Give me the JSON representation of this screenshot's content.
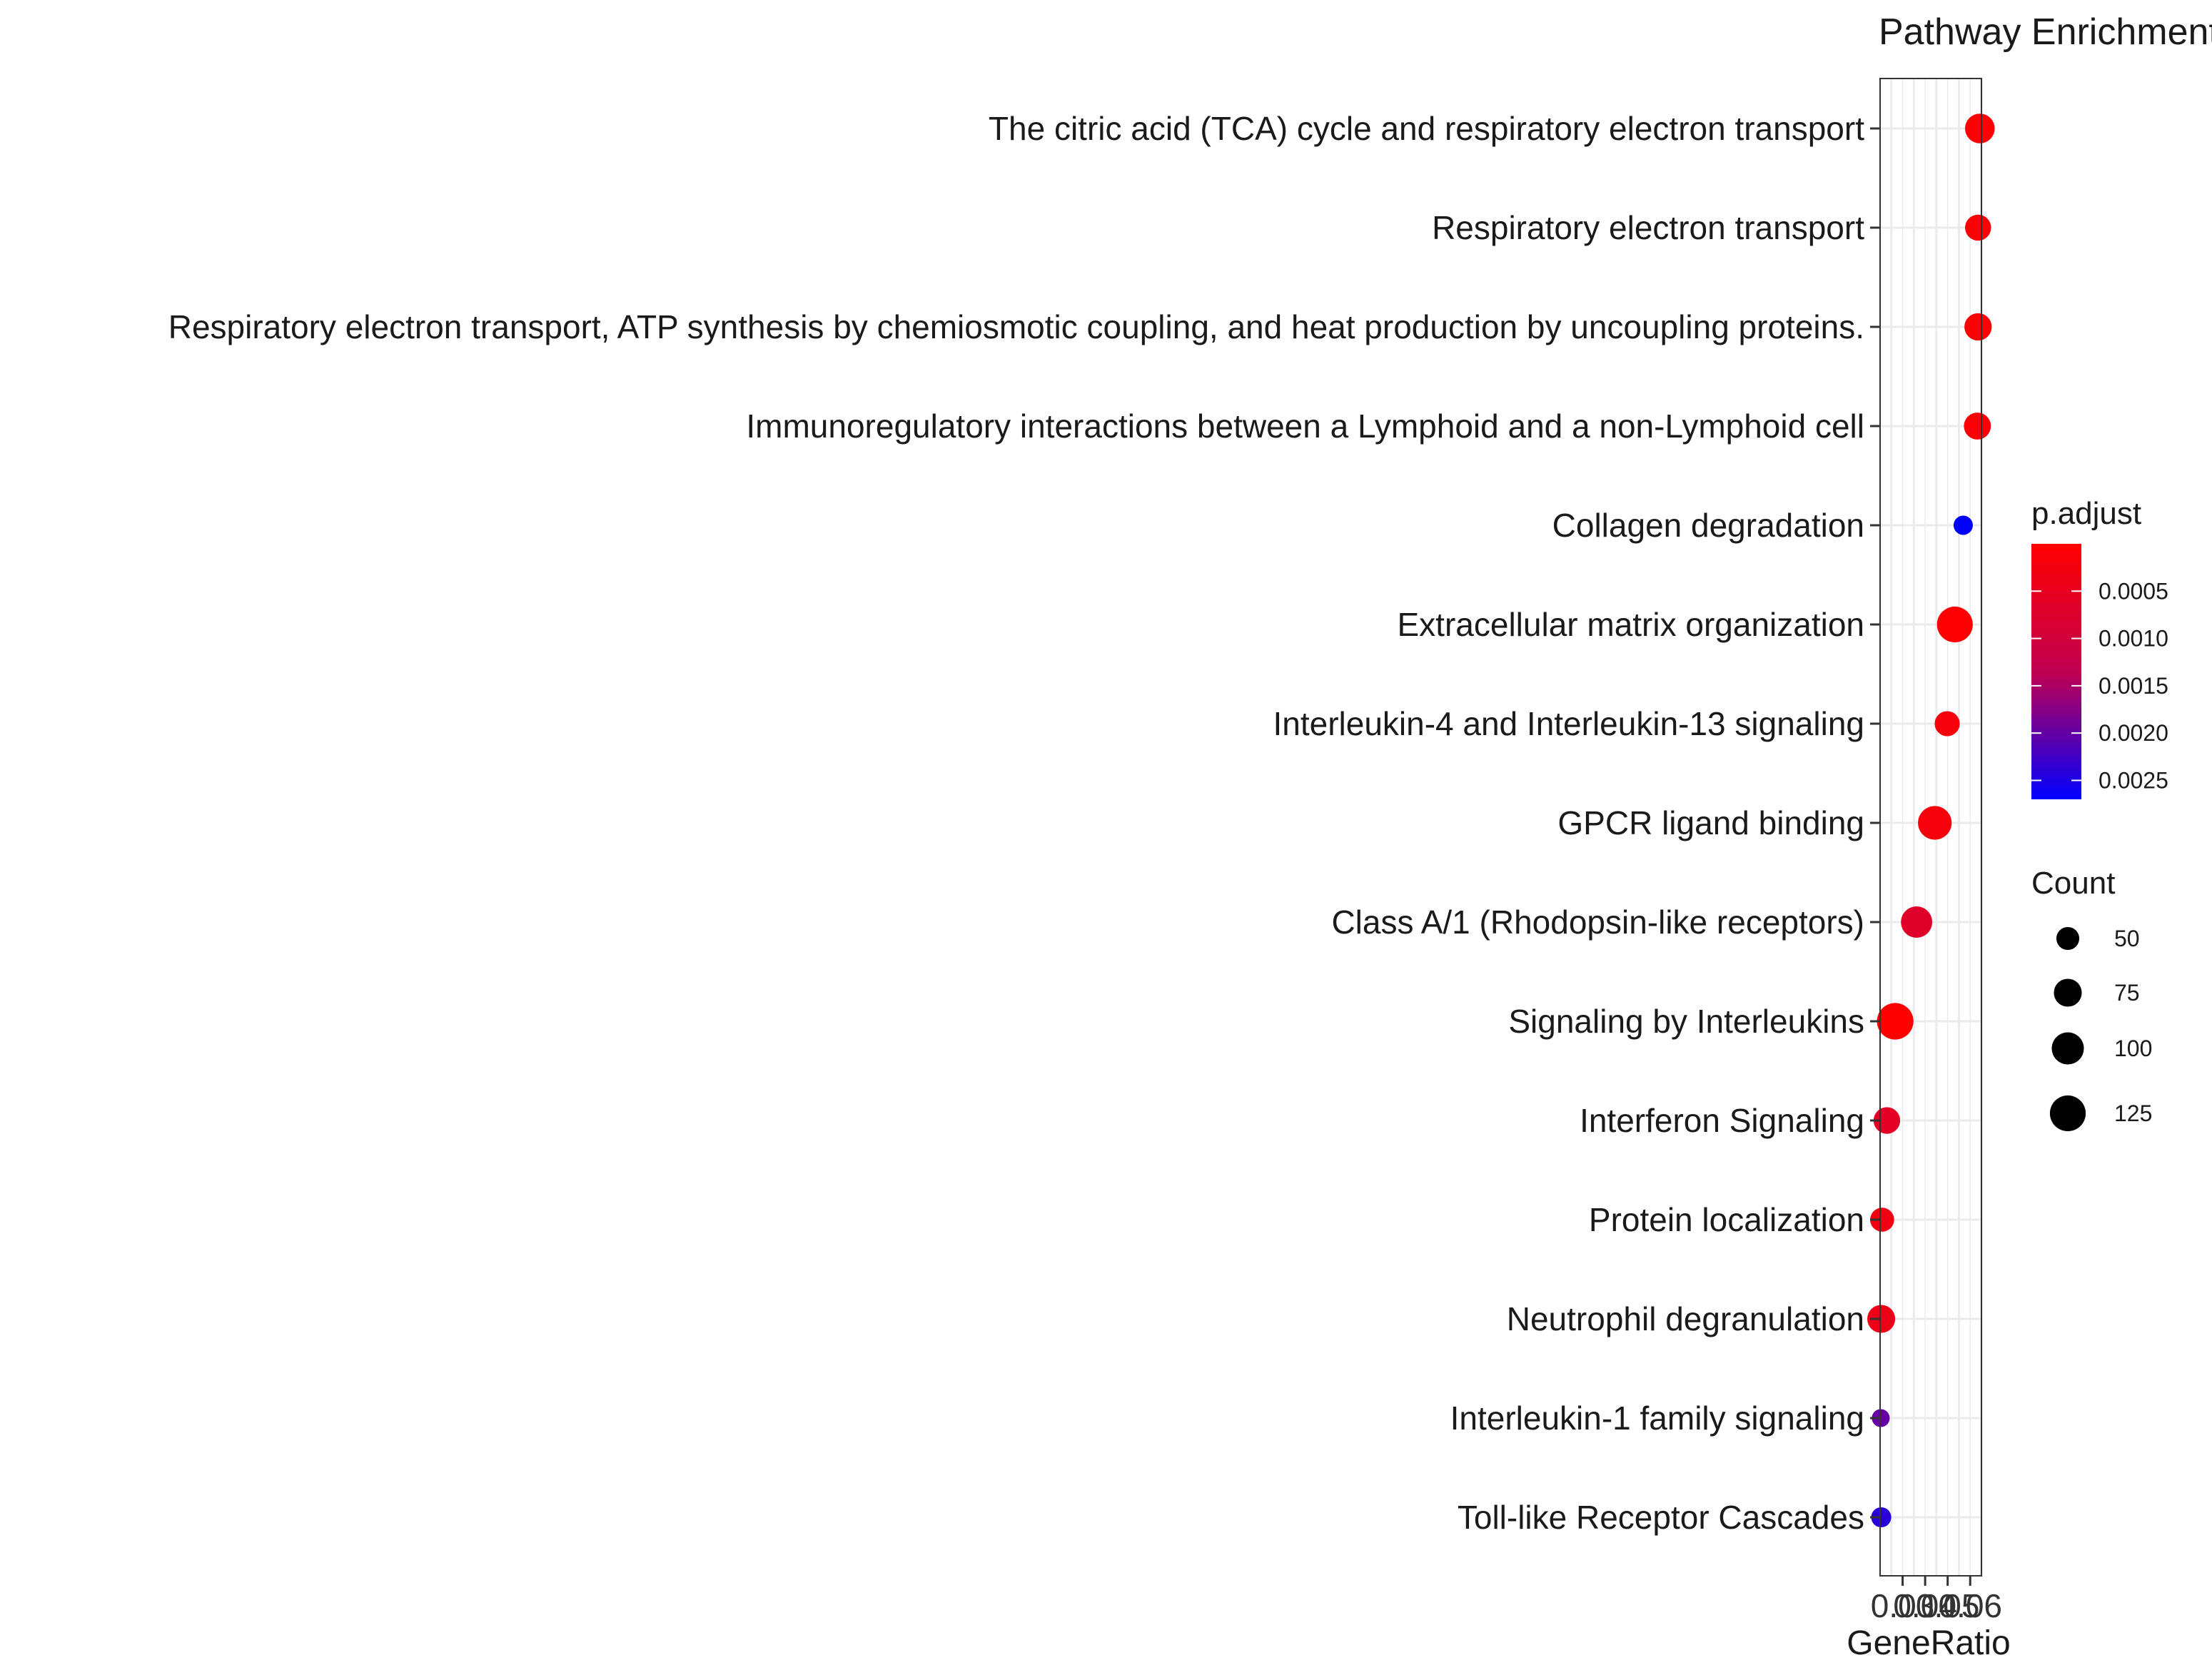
{
  "chart_data": {
    "type": "scatter",
    "title": "Pathway Enrichment",
    "xlabel": "GeneRatio",
    "ylabel": "",
    "xlim": [
      0.02,
      0.065
    ],
    "x_ticks": [
      {
        "value": 0.03,
        "label": "0.03"
      },
      {
        "value": 0.04,
        "label": "0.04"
      },
      {
        "value": 0.05,
        "label": "0.05"
      },
      {
        "value": 0.06,
        "label": "0.06"
      }
    ],
    "x_ticks_visible_text": "0.03.04.05.6",
    "grid": true,
    "categories": [
      "The citric acid (TCA) cycle and respiratory electron transport",
      "Respiratory electron transport",
      "Respiratory electron transport, ATP synthesis by chemiosmotic coupling, and heat production by uncoupling proteins.",
      "Immunoregulatory interactions between a Lymphoid and a non-Lymphoid cell",
      "Collagen degradation",
      "Extracellular matrix organization",
      "Interleukin-4 and Interleukin-13 signaling",
      "GPCR ligand binding",
      "Class A/1 (Rhodopsin-like receptors)",
      "Signaling by Interleukins",
      "Interferon Signaling",
      "Protein localization",
      "Neutrophil degranulation",
      "Interleukin-1 family signaling",
      "Toll-like Receptor Cascades"
    ],
    "points": [
      {
        "category": "The citric acid (TCA) cycle and respiratory electron transport",
        "gene_ratio": 0.0643,
        "count": 85,
        "p_adjust": 2e-05
      },
      {
        "category": "Respiratory electron transport",
        "gene_ratio": 0.0635,
        "count": 65,
        "p_adjust": 5e-05
      },
      {
        "category": "Respiratory electron transport, ATP synthesis by chemiosmotic coupling, and heat production by uncoupling proteins.",
        "gene_ratio": 0.0635,
        "count": 72,
        "p_adjust": 5e-05
      },
      {
        "category": "Immunoregulatory interactions between a Lymphoid and a non-Lymphoid cell",
        "gene_ratio": 0.0632,
        "count": 70,
        "p_adjust": 0.0001
      },
      {
        "category": "Collagen degradation",
        "gene_ratio": 0.0569,
        "count": 35,
        "p_adjust": 0.0027
      },
      {
        "category": "Extracellular matrix organization",
        "gene_ratio": 0.0532,
        "count": 125,
        "p_adjust": 3e-05
      },
      {
        "category": "Interleukin-4 and Interleukin-13 signaling",
        "gene_ratio": 0.0498,
        "count": 60,
        "p_adjust": 0.0002
      },
      {
        "category": "GPCR ligand binding",
        "gene_ratio": 0.0443,
        "count": 110,
        "p_adjust": 0.0002
      },
      {
        "category": "Class A/1 (Rhodopsin-like receptors)",
        "gene_ratio": 0.0362,
        "count": 95,
        "p_adjust": 0.0007
      },
      {
        "category": "Signaling by Interleukins",
        "gene_ratio": 0.0267,
        "count": 130,
        "p_adjust": 1e-05
      },
      {
        "category": "Interferon Signaling",
        "gene_ratio": 0.023,
        "count": 68,
        "p_adjust": 0.0006
      },
      {
        "category": "Protein localization",
        "gene_ratio": 0.0209,
        "count": 55,
        "p_adjust": 0.0003
      },
      {
        "category": "Neutrophil degranulation",
        "gene_ratio": 0.0205,
        "count": 75,
        "p_adjust": 0.0004
      },
      {
        "category": "Interleukin-1 family signaling",
        "gene_ratio": 0.0203,
        "count": 30,
        "p_adjust": 0.002
      },
      {
        "category": "Toll-like Receptor Cascades",
        "gene_ratio": 0.0205,
        "count": 38,
        "p_adjust": 0.0024
      }
    ],
    "color_legend": {
      "title": "p.adjust",
      "min": 0.0,
      "max": 0.0027,
      "low_color": "#FF0000",
      "high_color": "#0000FF",
      "ticks": [
        {
          "value": 0.0005,
          "label": "0.0005"
        },
        {
          "value": 0.001,
          "label": "0.0010"
        },
        {
          "value": 0.0015,
          "label": "0.0015"
        },
        {
          "value": 0.002,
          "label": "0.0020"
        },
        {
          "value": 0.0025,
          "label": "0.0025"
        }
      ]
    },
    "size_legend": {
      "title": "Count",
      "entries": [
        {
          "value": 50,
          "label": "50"
        },
        {
          "value": 75,
          "label": "75"
        },
        {
          "value": 100,
          "label": "100"
        },
        {
          "value": 125,
          "label": "125"
        }
      ]
    }
  }
}
